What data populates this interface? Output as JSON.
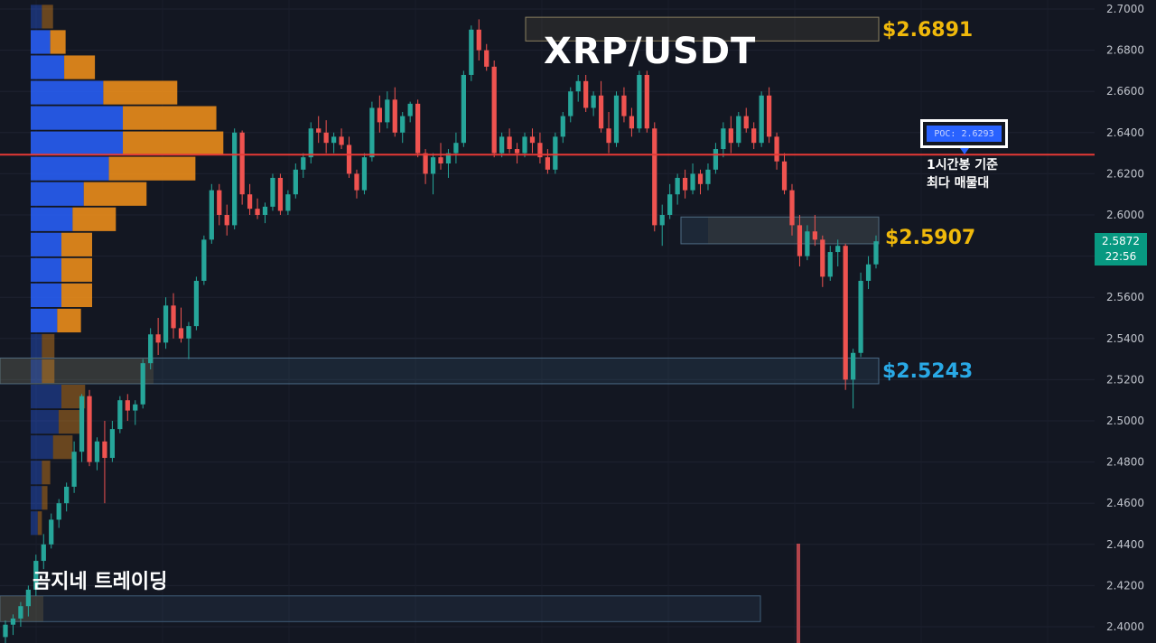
{
  "title": "XRP/USDT",
  "watermark": "곰지네 트레이딩",
  "levels": [
    {
      "label": "$2.6891",
      "color": "#f0b90b"
    },
    {
      "label": "$2.5907",
      "color": "#f0b90b"
    },
    {
      "label": "$2.5243",
      "color": "#29a9e6"
    }
  ],
  "poc": {
    "label": "POC: 2.6293",
    "note_line1": "1시간봉 기준",
    "note_line2": "최다 매물대"
  },
  "current_price": {
    "price": "2.5872",
    "countdown": "22:56"
  },
  "colors": {
    "background": "#131722",
    "up": "#26a69a",
    "down": "#ef5350",
    "poc_line": "#e53935",
    "vp_buy": "#2962ff",
    "vp_sell": "#f7931a"
  },
  "chart_data": {
    "type": "candlestick",
    "symbol": "XRP/USDT",
    "y_axis": {
      "ylim": [
        2.39,
        2.705
      ],
      "ticks": [
        "2.7000",
        "2.6800",
        "2.6600",
        "2.6400",
        "2.6200",
        "2.6000",
        "2.5800",
        "2.5600",
        "2.5400",
        "2.5200",
        "2.5000",
        "2.4800",
        "2.4600",
        "2.4400",
        "2.4200",
        "2.4000"
      ]
    },
    "grid": true,
    "poc_price": 2.6293,
    "zones": [
      {
        "name": "resistance",
        "low": 2.6845,
        "high": 2.696,
        "label": "$2.6891"
      },
      {
        "name": "support-1",
        "low": 2.586,
        "high": 2.599,
        "label": "$2.5907"
      },
      {
        "name": "support-2",
        "low": 2.518,
        "high": 2.5305,
        "label": "$2.5243"
      },
      {
        "name": "lower-zone",
        "low": 2.4025,
        "high": 2.415,
        "label": ""
      }
    ],
    "volume_profile": [
      {
        "price": 2.6963,
        "buy": 0.08,
        "sell": 0.08
      },
      {
        "price": 2.684,
        "buy": 0.14,
        "sell": 0.11
      },
      {
        "price": 2.6717,
        "buy": 0.24,
        "sell": 0.22
      },
      {
        "price": 2.6594,
        "buy": 0.52,
        "sell": 0.53
      },
      {
        "price": 2.6471,
        "buy": 0.66,
        "sell": 0.67
      },
      {
        "price": 2.6348,
        "buy": 0.66,
        "sell": 0.72
      },
      {
        "price": 2.6225,
        "buy": 0.56,
        "sell": 0.62
      },
      {
        "price": 2.6102,
        "buy": 0.38,
        "sell": 0.45
      },
      {
        "price": 2.5979,
        "buy": 0.3,
        "sell": 0.31
      },
      {
        "price": 2.5856,
        "buy": 0.22,
        "sell": 0.22
      },
      {
        "price": 2.5733,
        "buy": 0.22,
        "sell": 0.22
      },
      {
        "price": 2.561,
        "buy": 0.22,
        "sell": 0.22
      },
      {
        "price": 2.5487,
        "buy": 0.19,
        "sell": 0.17
      },
      {
        "price": 2.5364,
        "buy": 0.08,
        "sell": 0.09
      },
      {
        "price": 2.5241,
        "buy": 0.08,
        "sell": 0.09
      },
      {
        "price": 2.5118,
        "buy": 0.22,
        "sell": 0.17
      },
      {
        "price": 2.4995,
        "buy": 0.2,
        "sell": 0.15
      },
      {
        "price": 2.4872,
        "buy": 0.16,
        "sell": 0.14
      },
      {
        "price": 2.4749,
        "buy": 0.08,
        "sell": 0.06
      },
      {
        "price": 2.4626,
        "buy": 0.08,
        "sell": 0.04
      },
      {
        "price": 2.4503,
        "buy": 0.05,
        "sell": 0.03
      }
    ],
    "candles_ohlc": [
      [
        2.395,
        2.403,
        2.39,
        2.401
      ],
      [
        2.401,
        2.406,
        2.396,
        2.404
      ],
      [
        2.404,
        2.412,
        2.4,
        2.41
      ],
      [
        2.41,
        2.42,
        2.405,
        2.418
      ],
      [
        2.418,
        2.435,
        2.415,
        2.432
      ],
      [
        2.432,
        2.445,
        2.428,
        2.44
      ],
      [
        2.44,
        2.455,
        2.438,
        2.452
      ],
      [
        2.452,
        2.462,
        2.448,
        2.46
      ],
      [
        2.46,
        2.47,
        2.456,
        2.468
      ],
      [
        2.468,
        2.49,
        2.465,
        2.485
      ],
      [
        2.485,
        2.513,
        2.48,
        2.512
      ],
      [
        2.512,
        2.515,
        2.478,
        2.48
      ],
      [
        2.48,
        2.492,
        2.476,
        2.49
      ],
      [
        2.49,
        2.5,
        2.46,
        2.482
      ],
      [
        2.482,
        2.5,
        2.48,
        2.496
      ],
      [
        2.496,
        2.512,
        2.494,
        2.51
      ],
      [
        2.51,
        2.513,
        2.5,
        2.505
      ],
      [
        2.505,
        2.51,
        2.498,
        2.508
      ],
      [
        2.508,
        2.53,
        2.506,
        2.528
      ],
      [
        2.528,
        2.545,
        2.525,
        2.542
      ],
      [
        2.542,
        2.55,
        2.532,
        2.538
      ],
      [
        2.538,
        2.56,
        2.535,
        2.556
      ],
      [
        2.556,
        2.562,
        2.54,
        2.545
      ],
      [
        2.545,
        2.555,
        2.538,
        2.54
      ],
      [
        2.54,
        2.548,
        2.53,
        2.546
      ],
      [
        2.546,
        2.57,
        2.544,
        2.568
      ],
      [
        2.568,
        2.59,
        2.566,
        2.588
      ],
      [
        2.588,
        2.615,
        2.586,
        2.612
      ],
      [
        2.612,
        2.615,
        2.595,
        2.6
      ],
      [
        2.6,
        2.605,
        2.59,
        2.595
      ],
      [
        2.595,
        2.642,
        2.593,
        2.64
      ],
      [
        2.64,
        2.641,
        2.605,
        2.61
      ],
      [
        2.61,
        2.615,
        2.6,
        2.603
      ],
      [
        2.603,
        2.608,
        2.598,
        2.6
      ],
      [
        2.6,
        2.606,
        2.596,
        2.604
      ],
      [
        2.604,
        2.62,
        2.602,
        2.618
      ],
      [
        2.618,
        2.62,
        2.6,
        2.602
      ],
      [
        2.602,
        2.612,
        2.6,
        2.61
      ],
      [
        2.61,
        2.625,
        2.608,
        2.622
      ],
      [
        2.622,
        2.63,
        2.618,
        2.628
      ],
      [
        2.628,
        2.645,
        2.625,
        2.642
      ],
      [
        2.642,
        2.648,
        2.635,
        2.64
      ],
      [
        2.64,
        2.646,
        2.63,
        2.635
      ],
      [
        2.635,
        2.64,
        2.63,
        2.638
      ],
      [
        2.638,
        2.642,
        2.632,
        2.634
      ],
      [
        2.634,
        2.638,
        2.618,
        2.62
      ],
      [
        2.62,
        2.622,
        2.608,
        2.612
      ],
      [
        2.612,
        2.63,
        2.61,
        2.628
      ],
      [
        2.628,
        2.655,
        2.626,
        2.652
      ],
      [
        2.652,
        2.658,
        2.64,
        2.645
      ],
      [
        2.645,
        2.66,
        2.642,
        2.656
      ],
      [
        2.656,
        2.662,
        2.638,
        2.64
      ],
      [
        2.64,
        2.65,
        2.635,
        2.648
      ],
      [
        2.648,
        2.655,
        2.645,
        2.654
      ],
      [
        2.654,
        2.656,
        2.628,
        2.63
      ],
      [
        2.63,
        2.632,
        2.615,
        2.62
      ],
      [
        2.62,
        2.63,
        2.61,
        2.628
      ],
      [
        2.628,
        2.635,
        2.622,
        2.625
      ],
      [
        2.625,
        2.632,
        2.618,
        2.63
      ],
      [
        2.63,
        2.64,
        2.625,
        2.635
      ],
      [
        2.635,
        2.67,
        2.633,
        2.668
      ],
      [
        2.668,
        2.692,
        2.665,
        2.69
      ],
      [
        2.69,
        2.695,
        2.675,
        2.68
      ],
      [
        2.68,
        2.683,
        2.67,
        2.672
      ],
      [
        2.672,
        2.675,
        2.628,
        2.63
      ],
      [
        2.63,
        2.64,
        2.628,
        2.638
      ],
      [
        2.638,
        2.642,
        2.63,
        2.632
      ],
      [
        2.632,
        2.635,
        2.625,
        2.63
      ],
      [
        2.63,
        2.64,
        2.628,
        2.638
      ],
      [
        2.638,
        2.642,
        2.63,
        2.635
      ],
      [
        2.635,
        2.64,
        2.625,
        2.628
      ],
      [
        2.628,
        2.632,
        2.62,
        2.622
      ],
      [
        2.622,
        2.64,
        2.62,
        2.638
      ],
      [
        2.638,
        2.65,
        2.635,
        2.648
      ],
      [
        2.648,
        2.662,
        2.645,
        2.66
      ],
      [
        2.66,
        2.668,
        2.655,
        2.665
      ],
      [
        2.665,
        2.668,
        2.65,
        2.652
      ],
      [
        2.652,
        2.66,
        2.648,
        2.658
      ],
      [
        2.658,
        2.665,
        2.64,
        2.642
      ],
      [
        2.642,
        2.65,
        2.63,
        2.635
      ],
      [
        2.635,
        2.66,
        2.633,
        2.658
      ],
      [
        2.658,
        2.662,
        2.645,
        2.648
      ],
      [
        2.648,
        2.652,
        2.638,
        2.642
      ],
      [
        2.642,
        2.67,
        2.64,
        2.668
      ],
      [
        2.668,
        2.67,
        2.64,
        2.642
      ],
      [
        2.642,
        2.645,
        2.592,
        2.595
      ],
      [
        2.595,
        2.605,
        2.585,
        2.6
      ],
      [
        2.6,
        2.615,
        2.598,
        2.61
      ],
      [
        2.61,
        2.62,
        2.605,
        2.618
      ],
      [
        2.618,
        2.622,
        2.608,
        2.612
      ],
      [
        2.612,
        2.625,
        2.61,
        2.62
      ],
      [
        2.62,
        2.622,
        2.61,
        2.615
      ],
      [
        2.615,
        2.625,
        2.612,
        2.622
      ],
      [
        2.622,
        2.635,
        2.62,
        2.632
      ],
      [
        2.632,
        2.645,
        2.628,
        2.642
      ],
      [
        2.642,
        2.648,
        2.63,
        2.635
      ],
      [
        2.635,
        2.65,
        2.633,
        2.648
      ],
      [
        2.648,
        2.652,
        2.64,
        2.642
      ],
      [
        2.642,
        2.645,
        2.632,
        2.635
      ],
      [
        2.635,
        2.66,
        2.633,
        2.658
      ],
      [
        2.658,
        2.662,
        2.635,
        2.638
      ],
      [
        2.638,
        2.64,
        2.622,
        2.626
      ],
      [
        2.626,
        2.63,
        2.61,
        2.612
      ],
      [
        2.612,
        2.615,
        2.59,
        2.595
      ],
      [
        2.595,
        2.6,
        2.575,
        2.58
      ],
      [
        2.58,
        2.595,
        2.578,
        2.592
      ],
      [
        2.592,
        2.6,
        2.585,
        2.588
      ],
      [
        2.588,
        2.59,
        2.565,
        2.57
      ],
      [
        2.57,
        2.585,
        2.568,
        2.582
      ],
      [
        2.582,
        2.588,
        2.575,
        2.585
      ],
      [
        2.585,
        2.586,
        2.515,
        2.52
      ],
      [
        2.52,
        2.535,
        2.506,
        2.533
      ],
      [
        2.533,
        2.572,
        2.531,
        2.568
      ],
      [
        2.568,
        2.58,
        2.564,
        2.576
      ],
      [
        2.576,
        2.59,
        2.574,
        2.5872
      ]
    ]
  }
}
